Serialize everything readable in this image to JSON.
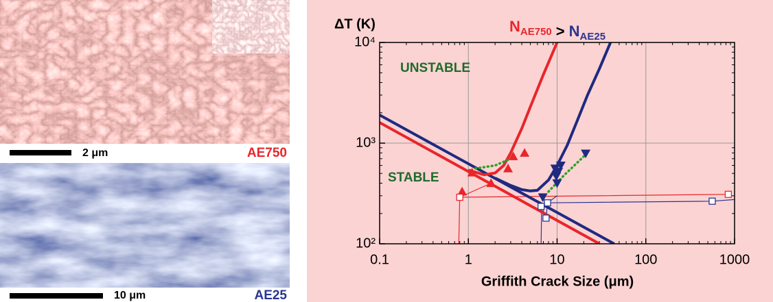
{
  "panels": [
    {
      "scale_bar": "2 μm",
      "label": "AE750",
      "color": "#e8262b"
    },
    {
      "scale_bar": "10 μm",
      "label": "AE25",
      "color": "#2a3590"
    }
  ],
  "chart_data": {
    "type": "line",
    "x_label": "Griffith Crack Size (μm)",
    "y_label": "ΔT (K)",
    "note": [
      {
        "text": "N",
        "sub": "AE750",
        "color": "#e8262b"
      },
      {
        "text": ">",
        "color": "#000000"
      },
      {
        "text": "N",
        "sub": "AE25",
        "color": "#2a3590"
      }
    ],
    "annotations": [
      {
        "text": "UNSTABLE",
        "color": "#1e6b2a"
      },
      {
        "text": "STABLE",
        "color": "#1e6b2a"
      }
    ],
    "xscale": "log",
    "yscale": "log",
    "xlim": [
      0.1,
      1000
    ],
    "ylim": [
      100,
      10000
    ],
    "xticks": [
      0.1,
      1,
      10,
      100,
      1000
    ],
    "yticks": [
      {
        "value": 100,
        "label": "10²"
      },
      {
        "value": 1000,
        "label": "10³"
      },
      {
        "value": 10000,
        "label": "10⁴"
      }
    ],
    "grid": true,
    "series": [
      {
        "color": "#e8262b",
        "style": "thin",
        "x": [
          0.78,
          0.8,
          850
        ],
        "values": [
          100,
          290,
          310
        ]
      },
      {
        "color": "#e8262b",
        "style": "thin",
        "x": [
          0.8,
          1.8
        ],
        "values": [
          290,
          400
        ]
      },
      {
        "color": "#2a3590",
        "style": "thin",
        "x": [
          6.6,
          6.7,
          7.5,
          7.8,
          560,
          1000
        ],
        "values": [
          100,
          235,
          180,
          255,
          265,
          275
        ]
      },
      {
        "color": "#2a3590",
        "style": "thin",
        "x": [
          7.8,
          10
        ],
        "values": [
          255,
          300
        ]
      },
      {
        "color": "#e8262b",
        "style": "thick",
        "x": [
          0.1,
          30
        ],
        "values": [
          1600,
          100
        ]
      },
      {
        "color": "#1f2a80",
        "style": "thick",
        "x": [
          0.1,
          44
        ],
        "values": [
          1900,
          100
        ]
      },
      {
        "color": "#e8262b",
        "style": "thick",
        "x": [
          1,
          1.5,
          2,
          2.5,
          3,
          4,
          5,
          7,
          10
        ],
        "values": [
          540,
          485,
          505,
          600,
          800,
          1400,
          2300,
          4800,
          10000
        ]
      },
      {
        "color": "#1f2a80",
        "style": "thick",
        "x": [
          2,
          3,
          4,
          5,
          6,
          8,
          10,
          13,
          17,
          22,
          30,
          40
        ],
        "values": [
          450,
          380,
          345,
          335,
          340,
          430,
          600,
          950,
          1700,
          3000,
          5500,
          10000
        ]
      },
      {
        "color": "#2ca02c",
        "style": "dotted",
        "x": [
          1.2,
          2,
          3,
          5,
          8,
          12,
          22
        ],
        "values": [
          560,
          600,
          700,
          null,
          330,
          480,
          800
        ]
      },
      {
        "color": "#e8262b",
        "style": "markers",
        "marker": "triangle-up",
        "x": [
          0.85,
          1.1,
          1.8,
          2.8,
          3.2,
          4.3
        ],
        "values": [
          330,
          510,
          400,
          560,
          740,
          800
        ]
      },
      {
        "color": "#1f2a80",
        "style": "markers",
        "marker": "triangle-down",
        "x": [
          6.9,
          9.5,
          9.8,
          10,
          10.3,
          11,
          21
        ],
        "values": [
          290,
          560,
          470,
          400,
          520,
          600,
          790
        ]
      },
      {
        "color": "#e8262b",
        "style": "markers",
        "marker": "square",
        "x": [
          0.8,
          850
        ],
        "values": [
          290,
          310
        ]
      },
      {
        "color": "#2a3590",
        "style": "markers",
        "marker": "square",
        "x": [
          6.6,
          7.5,
          7.8,
          560
        ],
        "values": [
          235,
          180,
          255,
          265
        ]
      }
    ]
  }
}
